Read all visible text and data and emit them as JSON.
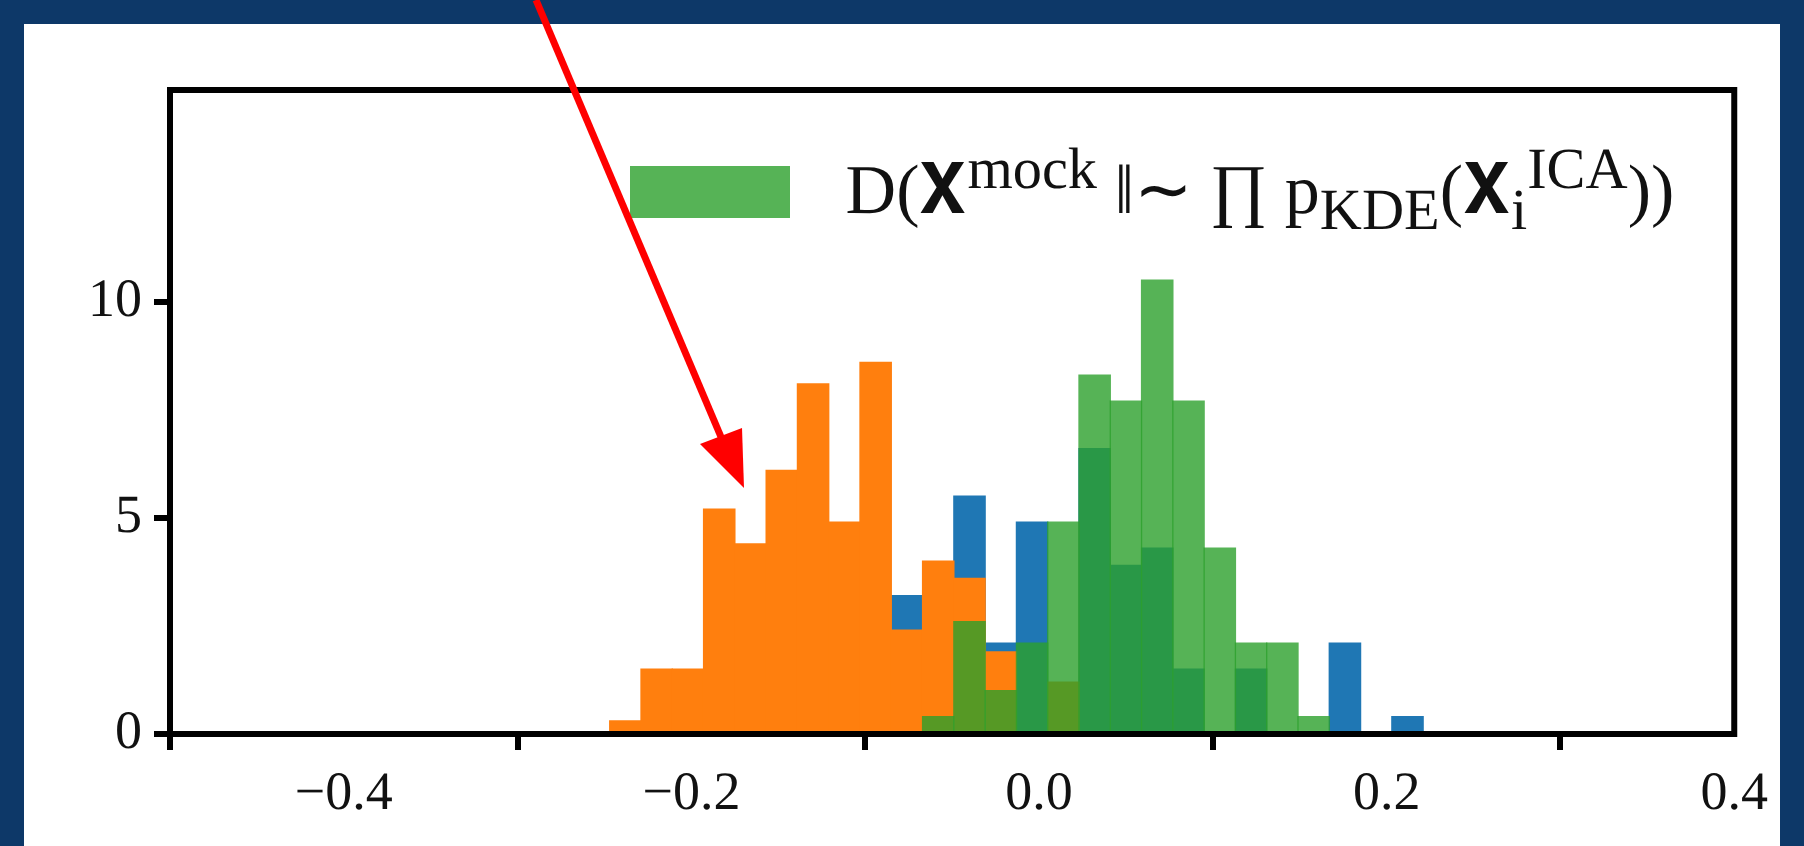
{
  "chart_data": {
    "type": "histogram",
    "bins": [
      -0.247,
      -0.229,
      -0.211,
      -0.193,
      -0.175,
      -0.157,
      -0.139,
      -0.121,
      -0.103,
      -0.085,
      -0.067,
      -0.049,
      -0.031,
      -0.013,
      0.005,
      0.023,
      0.041,
      0.059,
      0.077,
      0.095,
      0.113,
      0.131,
      0.149,
      0.167,
      0.185,
      0.203,
      0.221
    ],
    "series": [
      {
        "color": "#1f77b4",
        "values": [
          null,
          null,
          null,
          null,
          null,
          null,
          null,
          null,
          null,
          3.2,
          null,
          5.5,
          2.1,
          4.9,
          null,
          6.6,
          3.9,
          4.3,
          1.5,
          null,
          1.5,
          null,
          0,
          2.1,
          0,
          0.4
        ]
      },
      {
        "color": "#ff7f0e",
        "values": [
          0.3,
          1.5,
          1.5,
          5.2,
          4.4,
          6.1,
          8.1,
          4.9,
          8.6,
          2.4,
          4.0,
          3.6,
          1.9,
          0,
          1.2,
          0,
          0,
          0,
          0,
          0,
          0,
          0,
          0,
          0,
          0,
          0
        ]
      },
      {
        "name": "D(𝐗$^{mock}$ ‖∼ ∏ p$_{KDE}$(𝐗$_{i}$$^{ICA}$))",
        "color": "#2ca02c",
        "values": [
          0,
          0,
          0,
          0,
          0,
          0,
          0,
          0,
          0,
          0,
          0.4,
          2.6,
          1.0,
          2.1,
          4.9,
          8.3,
          7.7,
          10.5,
          7.7,
          4.3,
          2.1,
          2.1,
          0.4,
          0,
          0,
          0
        ]
      }
    ],
    "xlim": [
      -0.5,
      0.4
    ],
    "xticks": [
      -0.4,
      -0.2,
      {
        "value": 0,
        "label": "0.0"
      },
      0.2,
      0.4
    ],
    "ylim": [
      0,
      14.9
    ],
    "yticks": [
      0,
      5,
      10
    ],
    "legend": "top right"
  }
}
